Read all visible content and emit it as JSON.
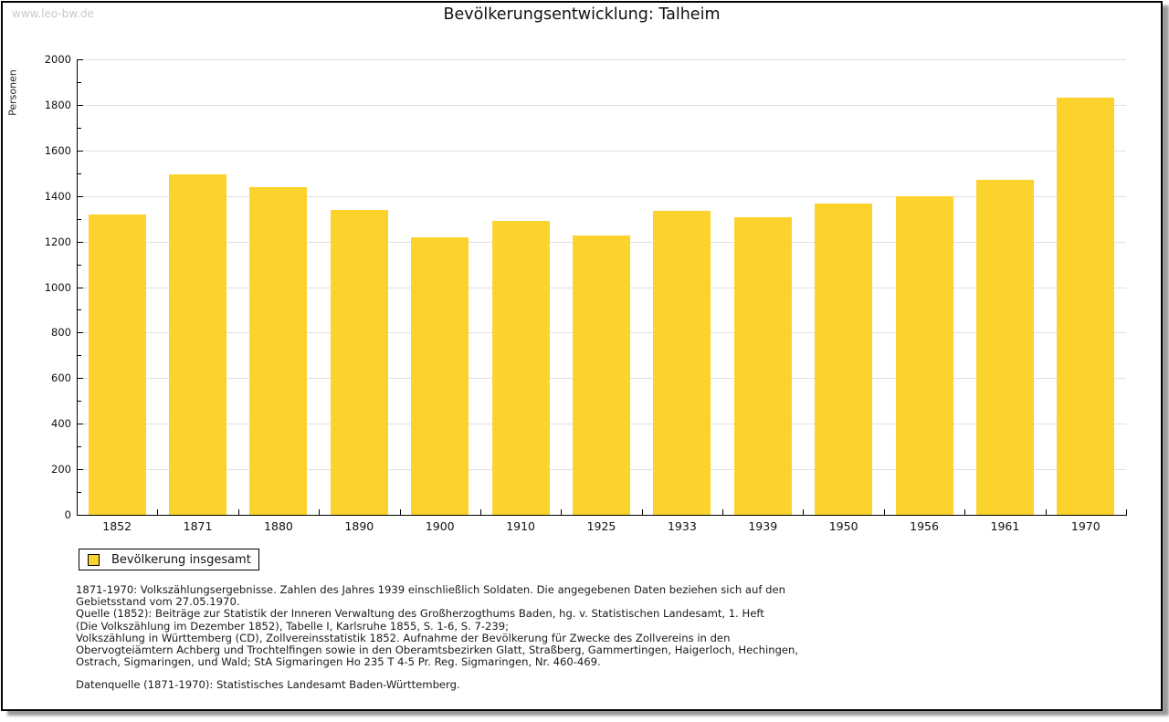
{
  "watermark": "www.leo-bw.de",
  "title": "Bevölkerungsentwicklung: Talheim",
  "ylabel": "Personen",
  "colors": {
    "bar": "#fcd32d",
    "grid": "#e0e0e0",
    "axis": "#000000",
    "watermark": "#c9c9c9"
  },
  "chart_data": {
    "type": "bar",
    "title": "Bevölkerungsentwicklung: Talheim",
    "xlabel": "",
    "ylabel": "Personen",
    "categories": [
      "1852",
      "1871",
      "1880",
      "1890",
      "1900",
      "1910",
      "1925",
      "1933",
      "1939",
      "1950",
      "1956",
      "1961",
      "1970"
    ],
    "values": [
      1320,
      1495,
      1440,
      1340,
      1220,
      1290,
      1225,
      1335,
      1305,
      1365,
      1400,
      1470,
      1830
    ],
    "ylim": [
      0,
      2000
    ],
    "ytick_step": 200,
    "yminor_step": 100,
    "grid": true,
    "bar_color": "#fcd32d",
    "legend_entries": [
      "Bevölkerung insgesamt"
    ],
    "legend_position": "bottom-left"
  },
  "legend": {
    "label": "Bevölkerung insgesamt"
  },
  "footnotes": {
    "lines": [
      "1871-1970: Volkszählungsergebnisse. Zahlen des Jahres 1939 einschließlich Soldaten. Die angegebenen Daten beziehen sich auf den",
      "Gebietsstand vom 27.05.1970.",
      "Quelle (1852): Beiträge zur Statistik der Inneren Verwaltung des Großherzogthums Baden, hg. v. Statistischen Landesamt, 1. Heft",
      "(Die Volkszählung im Dezember 1852), Tabelle I, Karlsruhe 1855, S. 1-6, S. 7-239;",
      "Volkszählung in Württemberg (CD), Zollvereinsstatistik 1852. Aufnahme der Bevölkerung für Zwecke des Zollvereins in den",
      "Obervogteiämtern Achberg und Trochtelfingen sowie in den Oberamtsbezirken Glatt, Straßberg, Gammertingen, Haigerloch, Hechingen,",
      "Ostrach, Sigmaringen, und Wald; StA Sigmaringen Ho 235 T 4-5 Pr. Reg. Sigmaringen, Nr. 460-469."
    ],
    "datasource": "Datenquelle (1871-1970): Statistisches Landesamt Baden-Württemberg."
  }
}
